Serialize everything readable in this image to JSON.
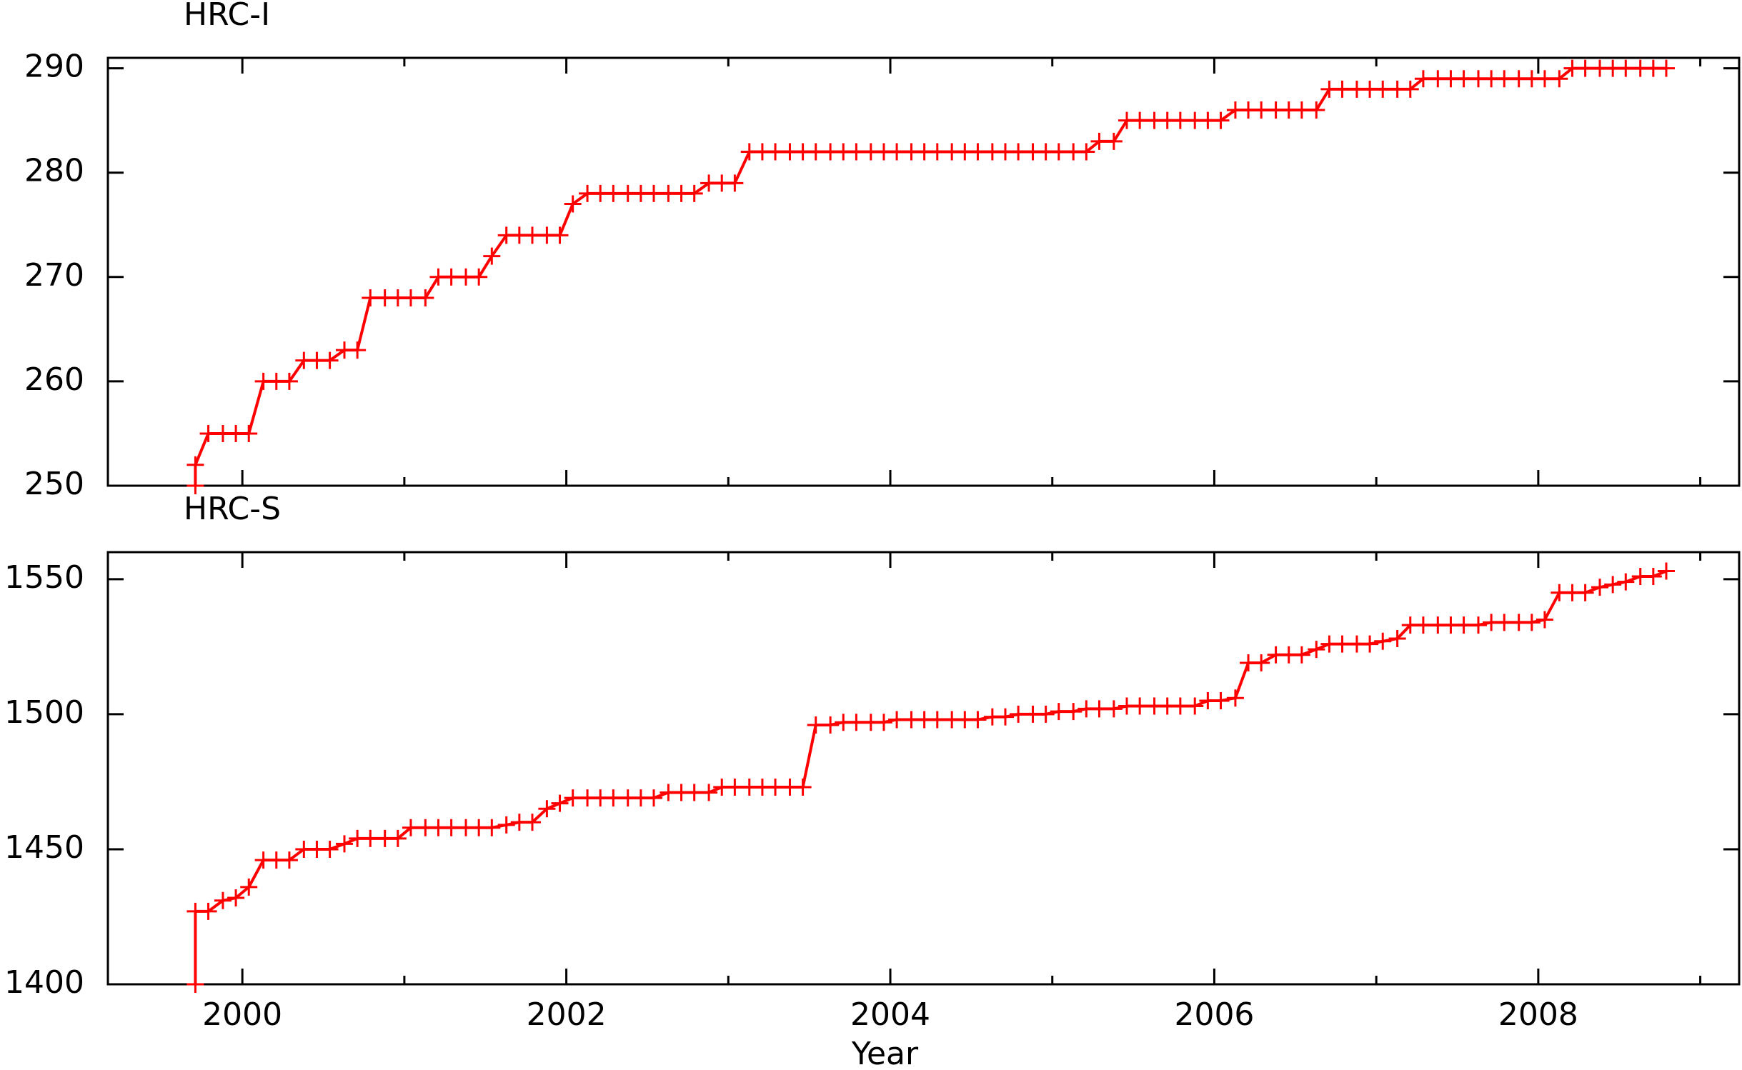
{
  "chart_data": [
    {
      "type": "line",
      "title": "HRC-I",
      "x": [
        1999.71,
        1999.71,
        1999.79,
        1999.88,
        1999.96,
        2000.04,
        2000.13,
        2000.21,
        2000.29,
        2000.38,
        2000.46,
        2000.54,
        2000.63,
        2000.71,
        2000.79,
        2000.88,
        2000.96,
        2001.04,
        2001.13,
        2001.21,
        2001.29,
        2001.38,
        2001.46,
        2001.54,
        2001.63,
        2001.71,
        2001.79,
        2001.88,
        2001.96,
        2002.04,
        2002.13,
        2002.21,
        2002.29,
        2002.38,
        2002.46,
        2002.54,
        2002.63,
        2002.71,
        2002.79,
        2002.88,
        2002.96,
        2003.04,
        2003.13,
        2003.21,
        2003.29,
        2003.38,
        2003.46,
        2003.54,
        2003.63,
        2003.71,
        2003.79,
        2003.88,
        2003.96,
        2004.04,
        2004.13,
        2004.21,
        2004.29,
        2004.38,
        2004.46,
        2004.54,
        2004.63,
        2004.71,
        2004.79,
        2004.88,
        2004.96,
        2005.04,
        2005.13,
        2005.21,
        2005.29,
        2005.38,
        2005.46,
        2005.54,
        2005.63,
        2005.71,
        2005.79,
        2005.88,
        2005.96,
        2006.04,
        2006.13,
        2006.21,
        2006.29,
        2006.38,
        2006.46,
        2006.54,
        2006.63,
        2006.71,
        2006.79,
        2006.88,
        2006.96,
        2007.04,
        2007.13,
        2007.21,
        2007.29,
        2007.38,
        2007.46,
        2007.54,
        2007.63,
        2007.71,
        2007.79,
        2007.88,
        2007.96,
        2008.04,
        2008.13,
        2008.21,
        2008.29,
        2008.38,
        2008.46,
        2008.54,
        2008.63,
        2008.71,
        2008.79
      ],
      "series": [
        {
          "color": "#ff0000",
          "values": [
            250,
            252,
            255,
            255,
            255,
            255,
            260,
            260,
            260,
            262,
            262,
            262,
            263,
            263,
            268,
            268,
            268,
            268,
            268,
            270,
            270,
            270,
            270,
            272,
            274,
            274,
            274,
            274,
            274,
            277,
            278,
            278,
            278,
            278,
            278,
            278,
            278,
            278,
            278,
            279,
            279,
            279,
            282,
            282,
            282,
            282,
            282,
            282,
            282,
            282,
            282,
            282,
            282,
            282,
            282,
            282,
            282,
            282,
            282,
            282,
            282,
            282,
            282,
            282,
            282,
            282,
            282,
            282,
            283,
            283,
            285,
            285,
            285,
            285,
            285,
            285,
            285,
            285,
            286,
            286,
            286,
            286,
            286,
            286,
            286,
            288,
            288,
            288,
            288,
            288,
            288,
            288,
            289,
            289,
            289,
            289,
            289,
            289,
            289,
            289,
            289,
            289,
            289,
            290,
            290,
            290,
            290,
            290,
            290,
            290,
            290
          ]
        }
      ],
      "xlim": [
        1999.17,
        2009.24
      ],
      "xticks": [
        2000,
        2002,
        2004,
        2006,
        2008
      ],
      "xminorticks": [
        2001,
        2003,
        2005,
        2007,
        2009
      ],
      "ylim": [
        250,
        291
      ],
      "yticks": [
        250,
        260,
        270,
        280,
        290
      ]
    },
    {
      "type": "line",
      "title": "HRC-S",
      "xlabel": "Year",
      "x": [
        1999.71,
        1999.71,
        1999.79,
        1999.88,
        1999.96,
        2000.04,
        2000.13,
        2000.21,
        2000.29,
        2000.38,
        2000.46,
        2000.54,
        2000.63,
        2000.71,
        2000.79,
        2000.88,
        2000.96,
        2001.04,
        2001.13,
        2001.21,
        2001.29,
        2001.38,
        2001.46,
        2001.54,
        2001.63,
        2001.71,
        2001.79,
        2001.88,
        2001.96,
        2002.04,
        2002.13,
        2002.21,
        2002.29,
        2002.38,
        2002.46,
        2002.54,
        2002.63,
        2002.71,
        2002.79,
        2002.88,
        2002.96,
        2003.04,
        2003.13,
        2003.21,
        2003.29,
        2003.38,
        2003.46,
        2003.54,
        2003.63,
        2003.71,
        2003.79,
        2003.88,
        2003.96,
        2004.04,
        2004.13,
        2004.21,
        2004.29,
        2004.38,
        2004.46,
        2004.54,
        2004.63,
        2004.71,
        2004.79,
        2004.88,
        2004.96,
        2005.04,
        2005.13,
        2005.21,
        2005.29,
        2005.38,
        2005.46,
        2005.54,
        2005.63,
        2005.71,
        2005.79,
        2005.88,
        2005.96,
        2006.04,
        2006.13,
        2006.21,
        2006.29,
        2006.38,
        2006.46,
        2006.54,
        2006.63,
        2006.71,
        2006.79,
        2006.88,
        2006.96,
        2007.04,
        2007.13,
        2007.21,
        2007.29,
        2007.38,
        2007.46,
        2007.54,
        2007.63,
        2007.71,
        2007.79,
        2007.88,
        2007.96,
        2008.04,
        2008.13,
        2008.21,
        2008.29,
        2008.38,
        2008.46,
        2008.54,
        2008.63,
        2008.71,
        2008.79
      ],
      "series": [
        {
          "color": "#ff0000",
          "values": [
            1400,
            1427,
            1427,
            1431,
            1432,
            1436,
            1446,
            1446,
            1446,
            1450,
            1450,
            1450,
            1452,
            1454,
            1454,
            1454,
            1454,
            1458,
            1458,
            1458,
            1458,
            1458,
            1458,
            1458,
            1459,
            1460,
            1460,
            1465,
            1467,
            1469,
            1469,
            1469,
            1469,
            1469,
            1469,
            1469,
            1471,
            1471,
            1471,
            1471,
            1473,
            1473,
            1473,
            1473,
            1473,
            1473,
            1473,
            1496,
            1496,
            1497,
            1497,
            1497,
            1497,
            1498,
            1498,
            1498,
            1498,
            1498,
            1498,
            1498,
            1499,
            1499,
            1500,
            1500,
            1500,
            1501,
            1501,
            1502,
            1502,
            1502,
            1503,
            1503,
            1503,
            1503,
            1503,
            1503,
            1505,
            1505,
            1506,
            1519,
            1519,
            1522,
            1522,
            1522,
            1524,
            1526,
            1526,
            1526,
            1526,
            1527,
            1528,
            1533,
            1533,
            1533,
            1533,
            1533,
            1533,
            1534,
            1534,
            1534,
            1534,
            1535,
            1545,
            1545,
            1545,
            1547,
            1548,
            1549,
            1551,
            1551,
            1553
          ]
        }
      ],
      "xlim": [
        1999.17,
        2009.24
      ],
      "xticks": [
        2000,
        2002,
        2004,
        2006,
        2008
      ],
      "xminorticks": [
        2001,
        2003,
        2005,
        2007,
        2009
      ],
      "ylim": [
        1400,
        1560
      ],
      "yticks": [
        1400,
        1450,
        1500,
        1550
      ]
    }
  ]
}
